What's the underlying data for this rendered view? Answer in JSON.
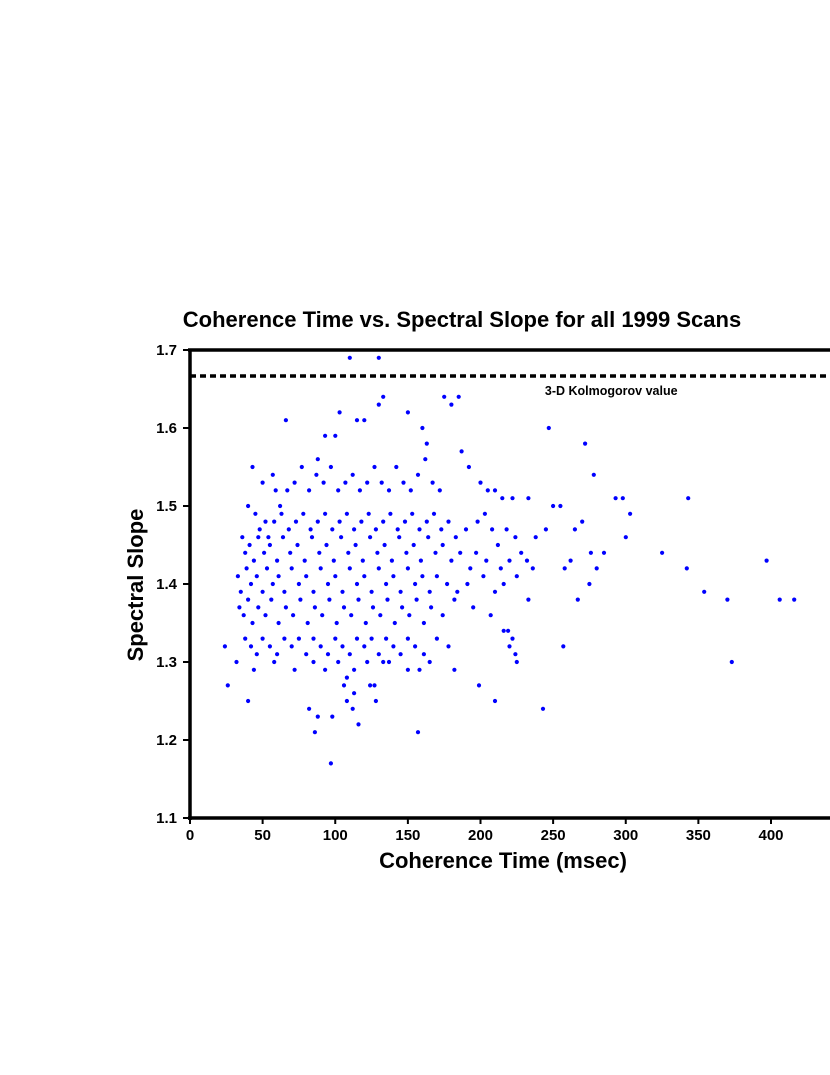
{
  "chart_data": {
    "type": "scatter",
    "title": "Coherence Time vs. Spectral Slope for all 1999 Scans",
    "xlabel": "Coherence Time (msec)",
    "ylabel": "Spectral Slope",
    "xlim": [
      0,
      440
    ],
    "ylim": [
      1.1,
      1.7
    ],
    "xticks": [
      0,
      50,
      100,
      150,
      200,
      250,
      300,
      350,
      400
    ],
    "yticks": [
      1.1,
      1.2,
      1.3,
      1.4,
      1.5,
      1.6,
      1.7
    ],
    "grid": false,
    "marker_color": "#0000ff",
    "reference_line": {
      "y": 1.6667,
      "style": "dashed",
      "label": "3-D Kolmogorov value"
    },
    "points": [
      [
        110,
        1.69
      ],
      [
        130,
        1.69
      ],
      [
        130,
        1.63
      ],
      [
        133,
        1.64
      ],
      [
        120,
        1.61
      ],
      [
        115,
        1.61
      ],
      [
        150,
        1.62
      ],
      [
        160,
        1.6
      ],
      [
        175,
        1.64
      ],
      [
        180,
        1.63
      ],
      [
        185,
        1.64
      ],
      [
        163,
        1.58
      ],
      [
        103,
        1.62
      ],
      [
        100,
        1.59
      ],
      [
        93,
        1.59
      ],
      [
        88,
        1.56
      ],
      [
        66,
        1.61
      ],
      [
        247,
        1.6
      ],
      [
        272,
        1.58
      ],
      [
        43,
        1.55
      ],
      [
        50,
        1.53
      ],
      [
        57,
        1.54
      ],
      [
        59,
        1.52
      ],
      [
        62,
        1.5
      ],
      [
        67,
        1.52
      ],
      [
        72,
        1.53
      ],
      [
        77,
        1.55
      ],
      [
        82,
        1.52
      ],
      [
        87,
        1.54
      ],
      [
        92,
        1.53
      ],
      [
        97,
        1.55
      ],
      [
        102,
        1.52
      ],
      [
        107,
        1.53
      ],
      [
        112,
        1.54
      ],
      [
        117,
        1.52
      ],
      [
        122,
        1.53
      ],
      [
        127,
        1.55
      ],
      [
        132,
        1.53
      ],
      [
        137,
        1.52
      ],
      [
        142,
        1.55
      ],
      [
        147,
        1.53
      ],
      [
        152,
        1.52
      ],
      [
        157,
        1.54
      ],
      [
        162,
        1.56
      ],
      [
        167,
        1.53
      ],
      [
        172,
        1.52
      ],
      [
        187,
        1.57
      ],
      [
        192,
        1.55
      ],
      [
        200,
        1.53
      ],
      [
        205,
        1.52
      ],
      [
        210,
        1.52
      ],
      [
        215,
        1.51
      ],
      [
        222,
        1.51
      ],
      [
        233,
        1.51
      ],
      [
        250,
        1.5
      ],
      [
        255,
        1.5
      ],
      [
        278,
        1.54
      ],
      [
        293,
        1.51
      ],
      [
        298,
        1.51
      ],
      [
        303,
        1.49
      ],
      [
        343,
        1.51
      ],
      [
        40,
        1.5
      ],
      [
        45,
        1.49
      ],
      [
        48,
        1.47
      ],
      [
        52,
        1.48
      ],
      [
        54,
        1.46
      ],
      [
        58,
        1.48
      ],
      [
        63,
        1.49
      ],
      [
        68,
        1.47
      ],
      [
        73,
        1.48
      ],
      [
        78,
        1.49
      ],
      [
        83,
        1.47
      ],
      [
        88,
        1.48
      ],
      [
        93,
        1.49
      ],
      [
        98,
        1.47
      ],
      [
        103,
        1.48
      ],
      [
        108,
        1.49
      ],
      [
        113,
        1.47
      ],
      [
        118,
        1.48
      ],
      [
        123,
        1.49
      ],
      [
        128,
        1.47
      ],
      [
        133,
        1.48
      ],
      [
        138,
        1.49
      ],
      [
        143,
        1.47
      ],
      [
        148,
        1.48
      ],
      [
        153,
        1.49
      ],
      [
        158,
        1.47
      ],
      [
        163,
        1.48
      ],
      [
        168,
        1.49
      ],
      [
        173,
        1.47
      ],
      [
        178,
        1.48
      ],
      [
        183,
        1.46
      ],
      [
        190,
        1.47
      ],
      [
        198,
        1.48
      ],
      [
        203,
        1.49
      ],
      [
        208,
        1.47
      ],
      [
        212,
        1.45
      ],
      [
        218,
        1.47
      ],
      [
        224,
        1.46
      ],
      [
        228,
        1.44
      ],
      [
        238,
        1.46
      ],
      [
        245,
        1.47
      ],
      [
        265,
        1.47
      ],
      [
        270,
        1.48
      ],
      [
        285,
        1.44
      ],
      [
        300,
        1.46
      ],
      [
        36,
        1.46
      ],
      [
        38,
        1.44
      ],
      [
        41,
        1.45
      ],
      [
        44,
        1.43
      ],
      [
        47,
        1.46
      ],
      [
        51,
        1.44
      ],
      [
        55,
        1.45
      ],
      [
        60,
        1.43
      ],
      [
        64,
        1.46
      ],
      [
        69,
        1.44
      ],
      [
        74,
        1.45
      ],
      [
        79,
        1.43
      ],
      [
        84,
        1.46
      ],
      [
        89,
        1.44
      ],
      [
        94,
        1.45
      ],
      [
        99,
        1.43
      ],
      [
        104,
        1.46
      ],
      [
        109,
        1.44
      ],
      [
        114,
        1.45
      ],
      [
        119,
        1.43
      ],
      [
        124,
        1.46
      ],
      [
        129,
        1.44
      ],
      [
        134,
        1.45
      ],
      [
        139,
        1.43
      ],
      [
        144,
        1.46
      ],
      [
        149,
        1.44
      ],
      [
        154,
        1.45
      ],
      [
        159,
        1.43
      ],
      [
        164,
        1.46
      ],
      [
        169,
        1.44
      ],
      [
        174,
        1.45
      ],
      [
        180,
        1.43
      ],
      [
        186,
        1.44
      ],
      [
        193,
        1.42
      ],
      [
        197,
        1.44
      ],
      [
        204,
        1.43
      ],
      [
        214,
        1.42
      ],
      [
        220,
        1.43
      ],
      [
        232,
        1.43
      ],
      [
        236,
        1.42
      ],
      [
        258,
        1.42
      ],
      [
        262,
        1.43
      ],
      [
        276,
        1.44
      ],
      [
        280,
        1.42
      ],
      [
        325,
        1.44
      ],
      [
        33,
        1.41
      ],
      [
        35,
        1.39
      ],
      [
        39,
        1.42
      ],
      [
        42,
        1.4
      ],
      [
        46,
        1.41
      ],
      [
        50,
        1.39
      ],
      [
        53,
        1.42
      ],
      [
        57,
        1.4
      ],
      [
        61,
        1.41
      ],
      [
        65,
        1.39
      ],
      [
        70,
        1.42
      ],
      [
        75,
        1.4
      ],
      [
        80,
        1.41
      ],
      [
        85,
        1.39
      ],
      [
        90,
        1.42
      ],
      [
        95,
        1.4
      ],
      [
        100,
        1.41
      ],
      [
        105,
        1.39
      ],
      [
        110,
        1.42
      ],
      [
        115,
        1.4
      ],
      [
        120,
        1.41
      ],
      [
        125,
        1.39
      ],
      [
        130,
        1.42
      ],
      [
        135,
        1.4
      ],
      [
        140,
        1.41
      ],
      [
        145,
        1.39
      ],
      [
        150,
        1.42
      ],
      [
        155,
        1.4
      ],
      [
        160,
        1.41
      ],
      [
        165,
        1.39
      ],
      [
        170,
        1.41
      ],
      [
        177,
        1.4
      ],
      [
        184,
        1.39
      ],
      [
        191,
        1.4
      ],
      [
        202,
        1.41
      ],
      [
        210,
        1.39
      ],
      [
        216,
        1.4
      ],
      [
        225,
        1.41
      ],
      [
        233,
        1.38
      ],
      [
        267,
        1.38
      ],
      [
        275,
        1.4
      ],
      [
        342,
        1.42
      ],
      [
        354,
        1.39
      ],
      [
        370,
        1.38
      ],
      [
        397,
        1.43
      ],
      [
        406,
        1.38
      ],
      [
        416,
        1.38
      ],
      [
        34,
        1.37
      ],
      [
        37,
        1.36
      ],
      [
        40,
        1.38
      ],
      [
        43,
        1.35
      ],
      [
        47,
        1.37
      ],
      [
        52,
        1.36
      ],
      [
        56,
        1.38
      ],
      [
        61,
        1.35
      ],
      [
        66,
        1.37
      ],
      [
        71,
        1.36
      ],
      [
        76,
        1.38
      ],
      [
        81,
        1.35
      ],
      [
        86,
        1.37
      ],
      [
        91,
        1.36
      ],
      [
        96,
        1.38
      ],
      [
        101,
        1.35
      ],
      [
        106,
        1.37
      ],
      [
        111,
        1.36
      ],
      [
        116,
        1.38
      ],
      [
        121,
        1.35
      ],
      [
        126,
        1.37
      ],
      [
        131,
        1.36
      ],
      [
        136,
        1.38
      ],
      [
        141,
        1.35
      ],
      [
        146,
        1.37
      ],
      [
        151,
        1.36
      ],
      [
        156,
        1.38
      ],
      [
        161,
        1.35
      ],
      [
        166,
        1.37
      ],
      [
        174,
        1.36
      ],
      [
        182,
        1.38
      ],
      [
        195,
        1.37
      ],
      [
        207,
        1.36
      ],
      [
        216,
        1.34
      ],
      [
        219,
        1.34
      ],
      [
        222,
        1.33
      ],
      [
        38,
        1.33
      ],
      [
        42,
        1.32
      ],
      [
        46,
        1.31
      ],
      [
        50,
        1.33
      ],
      [
        55,
        1.32
      ],
      [
        60,
        1.31
      ],
      [
        65,
        1.33
      ],
      [
        70,
        1.32
      ],
      [
        75,
        1.33
      ],
      [
        80,
        1.31
      ],
      [
        85,
        1.33
      ],
      [
        90,
        1.32
      ],
      [
        95,
        1.31
      ],
      [
        100,
        1.33
      ],
      [
        105,
        1.32
      ],
      [
        110,
        1.31
      ],
      [
        115,
        1.33
      ],
      [
        120,
        1.32
      ],
      [
        125,
        1.33
      ],
      [
        130,
        1.31
      ],
      [
        135,
        1.33
      ],
      [
        140,
        1.32
      ],
      [
        145,
        1.31
      ],
      [
        150,
        1.33
      ],
      [
        155,
        1.32
      ],
      [
        161,
        1.31
      ],
      [
        170,
        1.33
      ],
      [
        178,
        1.32
      ],
      [
        220,
        1.32
      ],
      [
        224,
        1.31
      ],
      [
        257,
        1.32
      ],
      [
        24,
        1.32
      ],
      [
        32,
        1.3
      ],
      [
        44,
        1.29
      ],
      [
        58,
        1.3
      ],
      [
        72,
        1.29
      ],
      [
        85,
        1.3
      ],
      [
        93,
        1.29
      ],
      [
        102,
        1.3
      ],
      [
        108,
        1.28
      ],
      [
        113,
        1.29
      ],
      [
        122,
        1.3
      ],
      [
        133,
        1.3
      ],
      [
        137,
        1.3
      ],
      [
        150,
        1.29
      ],
      [
        158,
        1.29
      ],
      [
        165,
        1.3
      ],
      [
        182,
        1.29
      ],
      [
        225,
        1.3
      ],
      [
        373,
        1.3
      ],
      [
        26,
        1.27
      ],
      [
        106,
        1.27
      ],
      [
        108,
        1.25
      ],
      [
        113,
        1.26
      ],
      [
        124,
        1.27
      ],
      [
        127,
        1.27
      ],
      [
        128,
        1.25
      ],
      [
        199,
        1.27
      ],
      [
        210,
        1.25
      ],
      [
        40,
        1.25
      ],
      [
        82,
        1.24
      ],
      [
        112,
        1.24
      ],
      [
        88,
        1.23
      ],
      [
        98,
        1.23
      ],
      [
        116,
        1.22
      ],
      [
        86,
        1.21
      ],
      [
        157,
        1.21
      ],
      [
        243,
        1.24
      ],
      [
        97,
        1.17
      ]
    ]
  }
}
